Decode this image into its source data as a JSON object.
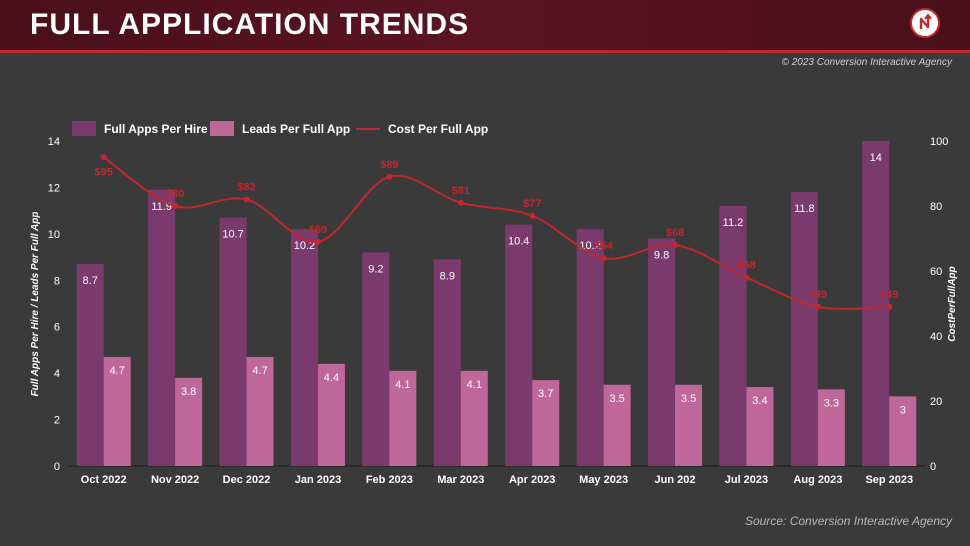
{
  "header": {
    "title": "FULL APPLICATION TRENDS",
    "copyright": "© 2023 Conversion Interactive Agency",
    "source": "Source: Conversion Interactive Agency"
  },
  "colors": {
    "bar1": "#7b3a6e",
    "bar2": "#c0679a",
    "line": "#c1272d",
    "header_accent": "#c1272d"
  },
  "chart_data": {
    "type": "bar",
    "categories": [
      "Oct 2022",
      "Nov 2022",
      "Dec 2022",
      "Jan 2023",
      "Feb 2023",
      "Mar 2023",
      "Apr 2023",
      "May 2023",
      "Jun 202",
      "Jul 2023",
      "Aug 2023",
      "Sep 2023"
    ],
    "series": [
      {
        "name": "Full Apps Per Hire",
        "type": "bar",
        "axis": "left",
        "values": [
          8.7,
          11.9,
          10.7,
          10.2,
          9.2,
          8.9,
          10.4,
          10.2,
          9.8,
          11.2,
          11.8,
          14
        ],
        "labels": [
          "8.7",
          "11.9",
          "10.7",
          "10.2",
          "9.2",
          "8.9",
          "10.4",
          "10.2",
          "9.8",
          "11.2",
          "11.8",
          "14"
        ]
      },
      {
        "name": "Leads Per Full App",
        "type": "bar",
        "axis": "left",
        "values": [
          4.7,
          3.8,
          4.7,
          4.4,
          4.1,
          4.1,
          3.7,
          3.5,
          3.5,
          3.4,
          3.3,
          3
        ],
        "labels": [
          "4.7",
          "3.8",
          "4.7",
          "4.4",
          "4.1",
          "4.1",
          "3.7",
          "3.5",
          "3.5",
          "3.4",
          "3.3",
          "3"
        ]
      },
      {
        "name": "Cost Per Full App",
        "type": "line",
        "axis": "right",
        "values": [
          95,
          80,
          82,
          69,
          89,
          81,
          77,
          64,
          68,
          58,
          49,
          49
        ],
        "labels": [
          "$95",
          "$80",
          "$82",
          "$69",
          "$89",
          "$81",
          "$77",
          "$64",
          "$68",
          "$58",
          "$49",
          "$49"
        ]
      }
    ],
    "ylabel": "Full Apps Per Hire / Leads Per Full App",
    "y2label": "CostPerFullApp",
    "ylim": [
      0,
      14
    ],
    "y2lim": [
      0,
      100
    ],
    "yticks": [
      "0",
      "2",
      "4",
      "6",
      "8",
      "10",
      "12",
      "14"
    ],
    "y2ticks": [
      "0",
      "20",
      "40",
      "60",
      "80",
      "100"
    ],
    "legend_position": "top-left",
    "grid": false
  }
}
